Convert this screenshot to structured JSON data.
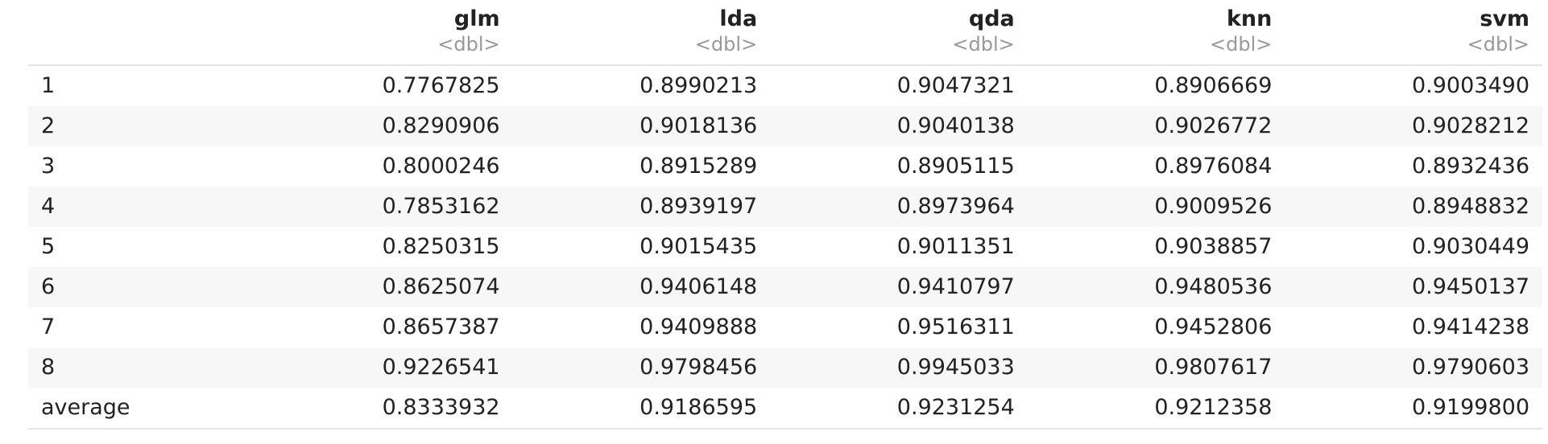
{
  "table": {
    "columns": [
      {
        "key": "glm",
        "name": "glm",
        "type": "<dbl>"
      },
      {
        "key": "lda",
        "name": "lda",
        "type": "<dbl>"
      },
      {
        "key": "qda",
        "name": "qda",
        "type": "<dbl>"
      },
      {
        "key": "knn",
        "name": "knn",
        "type": "<dbl>"
      },
      {
        "key": "svm",
        "name": "svm",
        "type": "<dbl>"
      }
    ],
    "rows": [
      {
        "label": "1",
        "values": [
          "0.7767825",
          "0.8990213",
          "0.9047321",
          "0.8906669",
          "0.9003490"
        ]
      },
      {
        "label": "2",
        "values": [
          "0.8290906",
          "0.9018136",
          "0.9040138",
          "0.9026772",
          "0.9028212"
        ]
      },
      {
        "label": "3",
        "values": [
          "0.8000246",
          "0.8915289",
          "0.8905115",
          "0.8976084",
          "0.8932436"
        ]
      },
      {
        "label": "4",
        "values": [
          "0.7853162",
          "0.8939197",
          "0.8973964",
          "0.9009526",
          "0.8948832"
        ]
      },
      {
        "label": "5",
        "values": [
          "0.8250315",
          "0.9015435",
          "0.9011351",
          "0.9038857",
          "0.9030449"
        ]
      },
      {
        "label": "6",
        "values": [
          "0.8625074",
          "0.9406148",
          "0.9410797",
          "0.9480536",
          "0.9450137"
        ]
      },
      {
        "label": "7",
        "values": [
          "0.8657387",
          "0.9409888",
          "0.9516311",
          "0.9452806",
          "0.9414238"
        ]
      },
      {
        "label": "8",
        "values": [
          "0.9226541",
          "0.9798456",
          "0.9945033",
          "0.9807617",
          "0.9790603"
        ]
      },
      {
        "label": "average",
        "values": [
          "0.8333932",
          "0.9186595",
          "0.9231254",
          "0.9212358",
          "0.9199800"
        ]
      }
    ]
  }
}
